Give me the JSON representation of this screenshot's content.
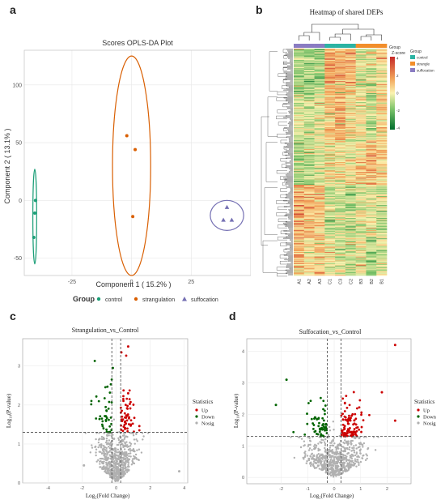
{
  "panels": {
    "a": {
      "letter": "a",
      "title": "Scores OPLS-DA Plot",
      "xlabel": "Component 1 ( 15.2% )",
      "ylabel": "Component 2 ( 13.1% )",
      "xticks": [
        "-25",
        "0",
        "25"
      ],
      "yticks": [
        "-50",
        "0",
        "50",
        "100"
      ],
      "legend_title": "Group",
      "legend": [
        {
          "label": "control",
          "color": "#1b9e77",
          "marker": "circle"
        },
        {
          "label": "strangulation",
          "color": "#d95f02",
          "marker": "circle"
        },
        {
          "label": "suffocation",
          "color": "#7570b3",
          "marker": "triangle"
        }
      ]
    },
    "b": {
      "letter": "b",
      "title": "Heatmap of shared DEPs",
      "group_label": "Group",
      "zscore_label": "Z-score",
      "colorbar_ticks": [
        "4",
        "2",
        "0",
        "-2",
        "-4"
      ],
      "legend_title": "Group",
      "legend": [
        {
          "label": "control",
          "color": "#2bb3a3"
        },
        {
          "label": "strangle",
          "color": "#f28e2b"
        },
        {
          "label": "suffocation",
          "color": "#8a7cc2"
        }
      ],
      "columns": [
        "A1",
        "A2",
        "A3",
        "C1",
        "C3",
        "C2",
        "B3",
        "B2",
        "B1"
      ]
    },
    "c": {
      "letter": "c",
      "title": "Strangulation_vs_Control",
      "ylabel": "Log₁₀(P-value)",
      "xlabel": "Log₂(Fold Change)",
      "xticks": [
        "-4",
        "-2",
        "0",
        "2",
        "4"
      ],
      "yticks": [
        "0",
        "1",
        "2",
        "3"
      ],
      "legend_title": "Statistics",
      "legend": [
        {
          "label": "Up",
          "color": "#cc0000"
        },
        {
          "label": "Down",
          "color": "#006400"
        },
        {
          "label": "Nosig",
          "color": "#b0b0b0"
        }
      ]
    },
    "d": {
      "letter": "d",
      "title": "Suffocation_vs_Control",
      "ylabel": "Log₁₀(P-value)",
      "xlabel": "Log₂(Fold Change)",
      "xticks": [
        "-2",
        "-1",
        "0",
        "1",
        "2"
      ],
      "yticks": [
        "0",
        "1",
        "2",
        "3",
        "4"
      ],
      "legend_title": "Statistics",
      "legend": [
        {
          "label": "Up",
          "color": "#cc0000"
        },
        {
          "label": "Down",
          "color": "#006400"
        },
        {
          "label": "Nosig",
          "color": "#b0b0b0"
        }
      ]
    }
  },
  "chart_data": [
    {
      "type": "scatter",
      "title": "Scores OPLS-DA Plot",
      "xlabel": "Component 1 ( 15.2% )",
      "ylabel": "Component 2 ( 13.1% )",
      "xlim": [
        -45,
        50
      ],
      "ylim": [
        -65,
        130
      ],
      "series": [
        {
          "name": "control",
          "color": "#1b9e77",
          "marker": "circle",
          "x": [
            -41,
            -40.6,
            -40.3
          ],
          "y": [
            -32,
            -11,
            0
          ],
          "ellipse": {
            "cx": -40.6,
            "cy": -14,
            "rx": 0.8,
            "ry": 41
          }
        },
        {
          "name": "strangulation",
          "color": "#d95f02",
          "marker": "circle",
          "x": [
            -2,
            0.5,
            1.5
          ],
          "y": [
            56,
            -14,
            44
          ],
          "ellipse": {
            "cx": 0,
            "cy": 30,
            "rx": 8,
            "ry": 95
          }
        },
        {
          "name": "suffocation",
          "color": "#7570b3",
          "marker": "triangle",
          "x": [
            38.5,
            40,
            42
          ],
          "y": [
            -17,
            -6,
            -17
          ],
          "ellipse": {
            "cx": 40,
            "cy": -13,
            "rx": 7,
            "ry": 13
          }
        }
      ]
    },
    {
      "type": "heatmap",
      "title": "Heatmap of shared DEPs",
      "columns": [
        "A1",
        "A2",
        "A3",
        "C1",
        "C3",
        "C2",
        "B3",
        "B2",
        "B1"
      ],
      "column_groups": [
        "suffocation",
        "suffocation",
        "suffocation",
        "control",
        "control",
        "control",
        "strangle",
        "strangle",
        "strangle"
      ],
      "zlim": [
        -4,
        4
      ],
      "row_blocks": [
        {
          "rows": 60,
          "mean": [
            -1.2,
            -1.4,
            -1.0,
            1.6,
            1.4,
            1.2,
            -0.5,
            -0.3,
            0.4
          ]
        },
        {
          "rows": 60,
          "mean": [
            -0.4,
            -0.6,
            -0.2,
            0.8,
            1.2,
            0.4,
            0.2,
            -0.8,
            0.6
          ]
        },
        {
          "rows": 60,
          "mean": [
            -1.0,
            -0.8,
            -0.6,
            0.2,
            0.4,
            0.0,
            0.6,
            1.0,
            0.8
          ]
        },
        {
          "rows": 70,
          "mean": [
            1.4,
            1.2,
            1.0,
            -0.8,
            -0.6,
            -1.0,
            -0.4,
            -0.2,
            -0.6
          ]
        },
        {
          "rows": 50,
          "mean": [
            1.0,
            0.4,
            0.8,
            -0.2,
            -0.4,
            -0.6,
            0.2,
            -1.2,
            -0.4
          ]
        }
      ]
    },
    {
      "type": "scatter",
      "title": "Strangulation_vs_Control",
      "xlabel": "Log₂(Fold Change)",
      "ylabel": "Log₁₀(P-value)",
      "xlim": [
        -5.5,
        4.2
      ],
      "ylim": [
        0,
        3.7
      ],
      "thresholds": {
        "x": [
          -0.26,
          0.26
        ],
        "y": 1.3
      },
      "counts": {
        "up": 55,
        "down": 40,
        "nosig": 600
      },
      "highlight_points": [
        {
          "x": 0.7,
          "y": 3.5,
          "group": "Up"
        },
        {
          "x": 0.3,
          "y": 3.35,
          "group": "Up"
        },
        {
          "x": -0.2,
          "y": 2.95,
          "group": "Down"
        },
        {
          "x": 0.7,
          "y": 2.3,
          "group": "Up"
        },
        {
          "x": -1.9,
          "y": 0.45,
          "group": "Nosig"
        },
        {
          "x": 3.7,
          "y": 0.3,
          "group": "Nosig"
        }
      ]
    },
    {
      "type": "scatter",
      "title": "Suffocation_vs_Control",
      "xlabel": "Log₂(Fold Change)",
      "ylabel": "Log₁₀(P-value)",
      "xlim": [
        -3.3,
        2.9
      ],
      "ylim": [
        -0.2,
        4.4
      ],
      "thresholds": {
        "x": [
          -0.26,
          0.26
        ],
        "y": 1.3
      },
      "counts": {
        "up": 90,
        "down": 55,
        "nosig": 650
      },
      "highlight_points": [
        {
          "x": 2.3,
          "y": 4.2,
          "group": "Up"
        },
        {
          "x": -2.2,
          "y": 2.3,
          "group": "Down"
        },
        {
          "x": 1.8,
          "y": 2.7,
          "group": "Up"
        },
        {
          "x": -1.8,
          "y": 3.1,
          "group": "Down"
        },
        {
          "x": 2.3,
          "y": 1.8,
          "group": "Up"
        }
      ]
    }
  ]
}
